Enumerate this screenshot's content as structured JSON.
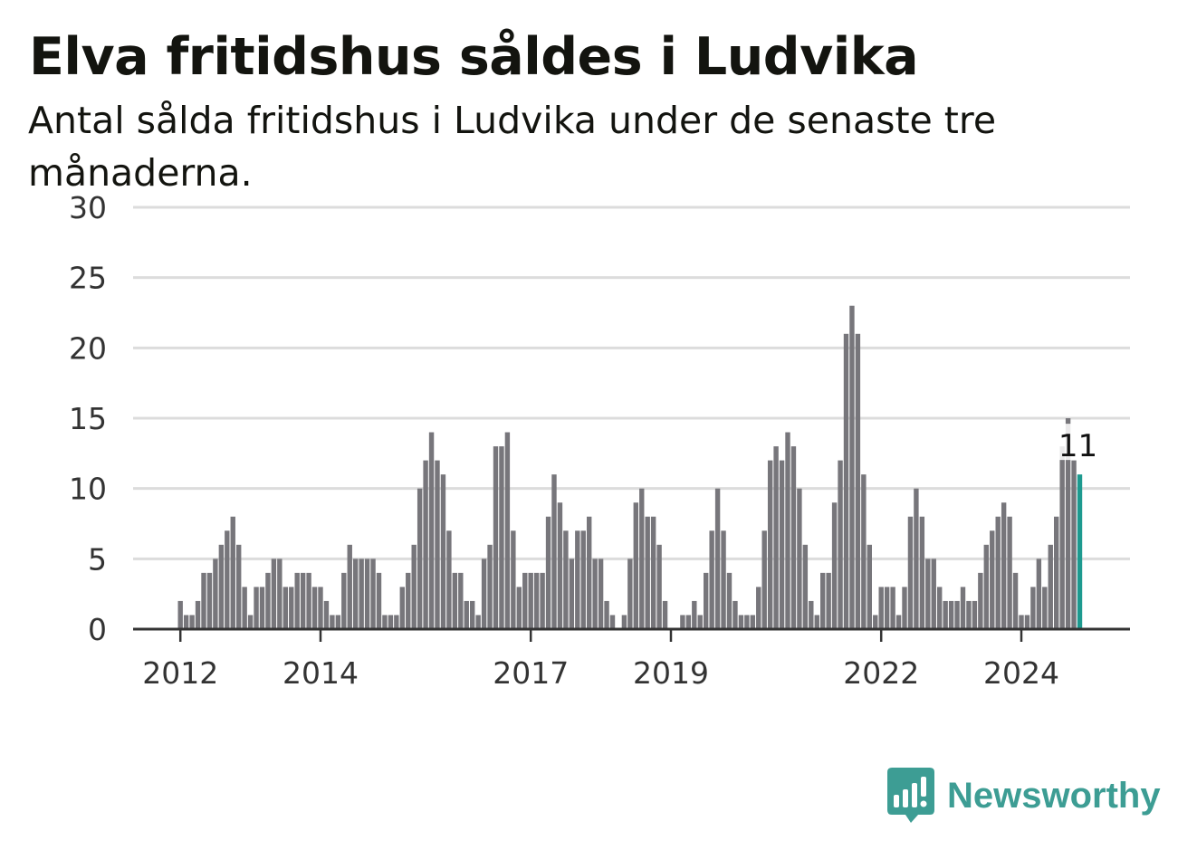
{
  "title": "Elva fritidshus såldes i Ludvika",
  "subtitle": "Antal sålda fritidshus i Ludvika under de senaste tre månaderna.",
  "logo": {
    "text": "Newsworthy",
    "icon": "bar-chart-speech-bubble-icon"
  },
  "colors": {
    "bar": "#77767b",
    "highlight": "#1d9a8f",
    "grid": "#dcdcdc",
    "axis": "#333333",
    "logo": "#3d9d94"
  },
  "chart_data": {
    "type": "bar",
    "title": "Elva fritidshus såldes i Ludvika",
    "xlabel": "",
    "ylabel": "",
    "ylim": [
      0,
      30
    ],
    "yticks": [
      0,
      5,
      10,
      15,
      20,
      25,
      30
    ],
    "xticks": [
      "2012",
      "2014",
      "2017",
      "2019",
      "2022",
      "2024"
    ],
    "grid": true,
    "legend": "none",
    "start": "2012-01",
    "frequency": "monthly",
    "values": [
      2,
      1,
      1,
      2,
      4,
      4,
      5,
      6,
      7,
      8,
      6,
      3,
      1,
      3,
      3,
      4,
      5,
      5,
      3,
      3,
      4,
      4,
      4,
      3,
      3,
      2,
      1,
      1,
      4,
      6,
      5,
      5,
      5,
      5,
      4,
      1,
      1,
      1,
      3,
      4,
      6,
      10,
      12,
      14,
      12,
      11,
      7,
      4,
      4,
      2,
      2,
      1,
      5,
      6,
      13,
      13,
      14,
      7,
      3,
      4,
      4,
      4,
      4,
      8,
      11,
      9,
      7,
      5,
      7,
      7,
      8,
      5,
      5,
      2,
      1,
      0,
      1,
      5,
      9,
      10,
      8,
      8,
      6,
      2,
      0,
      0,
      1,
      1,
      2,
      1,
      4,
      7,
      10,
      7,
      4,
      2,
      1,
      1,
      1,
      3,
      7,
      12,
      13,
      12,
      14,
      13,
      10,
      6,
      2,
      1,
      4,
      4,
      9,
      12,
      21,
      23,
      21,
      11,
      6,
      1,
      3,
      3,
      3,
      1,
      3,
      8,
      10,
      8,
      5,
      5,
      3,
      2,
      2,
      2,
      3,
      2,
      2,
      4,
      6,
      7,
      8,
      9,
      8,
      4,
      1,
      1,
      3,
      5,
      3,
      6,
      8,
      13,
      15,
      12,
      11
    ],
    "highlight_last": true,
    "annotation": "11"
  }
}
